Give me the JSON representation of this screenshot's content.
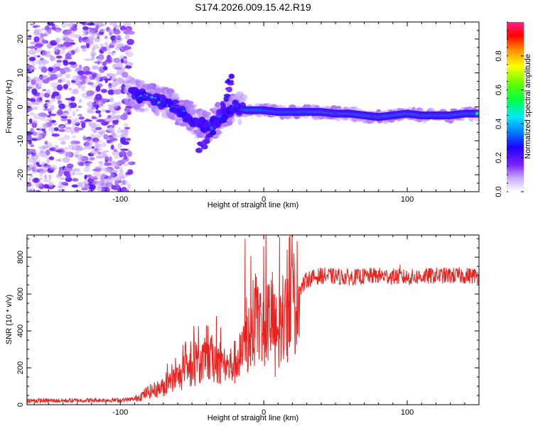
{
  "title": "S174.2026.009.15.42.R19",
  "chart_data": [
    {
      "type": "heatmap",
      "name": "spectrogram",
      "xlabel": "Height of straight line (km)",
      "ylabel": "Frequency (Hz)",
      "xlim": [
        -165,
        150
      ],
      "ylim": [
        -25,
        25
      ],
      "xticks": [
        -100,
        0,
        100
      ],
      "yticks": [
        -20,
        -10,
        0,
        10,
        20
      ],
      "colorbar": {
        "label": "Normalized spectral amplitude",
        "range": [
          0,
          1
        ],
        "ticks": [
          "0.0",
          "0.2",
          "0.4",
          "0.6",
          "0.8"
        ],
        "tick_values": [
          0.0,
          0.2,
          0.4,
          0.6,
          0.8
        ]
      },
      "noise_region_x": [
        -165,
        -92
      ],
      "ridge": [
        {
          "x": -92,
          "y": 4,
          "amp": 0.35
        },
        {
          "x": -85,
          "y": 3,
          "amp": 0.45
        },
        {
          "x": -75,
          "y": 2,
          "amp": 0.45
        },
        {
          "x": -65,
          "y": 1,
          "amp": 0.35
        },
        {
          "x": -55,
          "y": -2,
          "amp": 0.3
        },
        {
          "x": -45,
          "y": -5,
          "amp": 0.3
        },
        {
          "x": -38,
          "y": -6,
          "amp": 0.35
        },
        {
          "x": -30,
          "y": -3,
          "amp": 0.3
        },
        {
          "x": -22,
          "y": 0,
          "amp": 0.35
        },
        {
          "x": -12,
          "y": -1,
          "amp": 0.45
        },
        {
          "x": 0,
          "y": -1,
          "amp": 0.5
        },
        {
          "x": 10,
          "y": -1.5,
          "amp": 0.55
        },
        {
          "x": 20,
          "y": -1.5,
          "amp": 0.6
        },
        {
          "x": 30,
          "y": -1.5,
          "amp": 0.65
        },
        {
          "x": 40,
          "y": -1.5,
          "amp": 0.85
        },
        {
          "x": 50,
          "y": -2,
          "amp": 0.95
        },
        {
          "x": 60,
          "y": -2,
          "amp": 0.7
        },
        {
          "x": 70,
          "y": -2.5,
          "amp": 0.8
        },
        {
          "x": 80,
          "y": -3,
          "amp": 0.9
        },
        {
          "x": 90,
          "y": -2.5,
          "amp": 0.7
        },
        {
          "x": 100,
          "y": -2,
          "amp": 0.7
        },
        {
          "x": 110,
          "y": -2.5,
          "amp": 0.75
        },
        {
          "x": 120,
          "y": -2.5,
          "amp": 0.95
        },
        {
          "x": 130,
          "y": -2.5,
          "amp": 0.7
        },
        {
          "x": 140,
          "y": -2,
          "amp": 0.6
        },
        {
          "x": 150,
          "y": -2,
          "amp": 0.55
        }
      ],
      "branches": [
        {
          "x": [
            -45,
            -38,
            -30,
            -25,
            -22
          ],
          "y": [
            -12,
            -9,
            -3,
            5,
            10
          ],
          "amp": 0.25
        }
      ]
    },
    {
      "type": "line",
      "name": "snr",
      "xlabel": "Height of straight line (km)",
      "ylabel": "SNR (10 * v/v)",
      "xlim": [
        -165,
        150
      ],
      "ylim": [
        0,
        920
      ],
      "xticks": [
        -100,
        0,
        100
      ],
      "yticks": [
        0,
        200,
        400,
        600,
        800
      ],
      "color": "#e8221f",
      "baseline": [
        [
          -165,
          22
        ],
        [
          -140,
          22
        ],
        [
          -120,
          24
        ],
        [
          -100,
          25
        ],
        [
          -90,
          30
        ],
        [
          -85,
          50
        ],
        [
          -80,
          70
        ],
        [
          -70,
          95
        ],
        [
          -60,
          150
        ],
        [
          -50,
          200
        ],
        [
          -45,
          220
        ],
        [
          -40,
          240
        ],
        [
          -35,
          250
        ],
        [
          -30,
          230
        ],
        [
          -25,
          200
        ],
        [
          -20,
          230
        ],
        [
          -15,
          270
        ],
        [
          -10,
          380
        ],
        [
          -5,
          420
        ],
        [
          0,
          440
        ],
        [
          5,
          460
        ],
        [
          8,
          400
        ],
        [
          12,
          350
        ],
        [
          15,
          480
        ],
        [
          20,
          540
        ],
        [
          25,
          620
        ],
        [
          30,
          680
        ],
        [
          40,
          700
        ],
        [
          60,
          690
        ],
        [
          80,
          700
        ],
        [
          100,
          690
        ],
        [
          120,
          700
        ],
        [
          140,
          700
        ],
        [
          150,
          700
        ]
      ],
      "spikes": [
        {
          "x": -13,
          "y": 900
        },
        {
          "x": 11,
          "y": 910
        },
        {
          "x": -33,
          "y": 480
        },
        {
          "x": -12,
          "y": 580
        },
        {
          "x": 6,
          "y": 720
        },
        {
          "x": 8,
          "y": 150
        },
        {
          "x": 95,
          "y": 760
        },
        {
          "x": -40,
          "y": 430
        }
      ]
    }
  ]
}
